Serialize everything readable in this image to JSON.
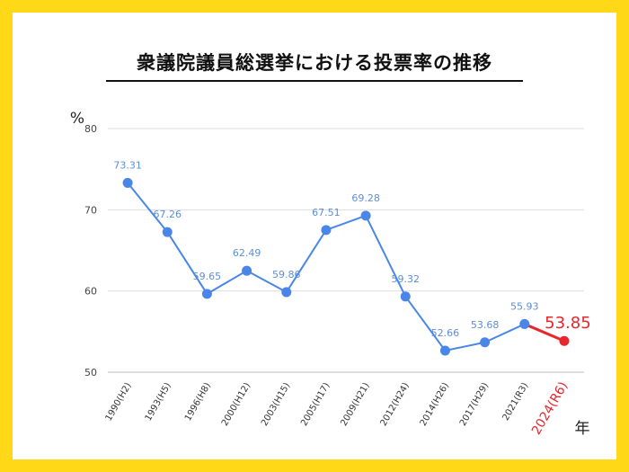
{
  "colors": {
    "background": "#FFD817",
    "line": "#4A86E8",
    "highlight": "#E8262B",
    "label": "#5B8FD8",
    "grid": "#DDDDDD",
    "tick": "#444444"
  },
  "chart_data": {
    "type": "line",
    "title": "衆議院議員総選挙における投票率の推移",
    "ylabel": "%",
    "xlabel": "年",
    "ylim": [
      50,
      80
    ],
    "yticks": [
      50,
      60,
      70,
      80
    ],
    "grid": true,
    "categories": [
      "1990(H2)",
      "1993(H5)",
      "1996(H8)",
      "2000(H12)",
      "2003(H15)",
      "2005(H17)",
      "2009(H21)",
      "2012(H24)",
      "2014(H26)",
      "2017(H29)",
      "2021(R3)",
      "2024(R6)"
    ],
    "series": [
      {
        "values": [
          73.31,
          67.26,
          59.65,
          62.49,
          59.86,
          67.51,
          69.28,
          59.32,
          52.66,
          53.68,
          55.93,
          53.85
        ],
        "labels": [
          "73.31",
          "67.26",
          "59.65",
          "62.49",
          "59.86",
          "67.51",
          "69.28",
          "59.32",
          "52.66",
          "53.68",
          "55.93",
          "53.85"
        ],
        "highlight_index": 11
      }
    ]
  }
}
